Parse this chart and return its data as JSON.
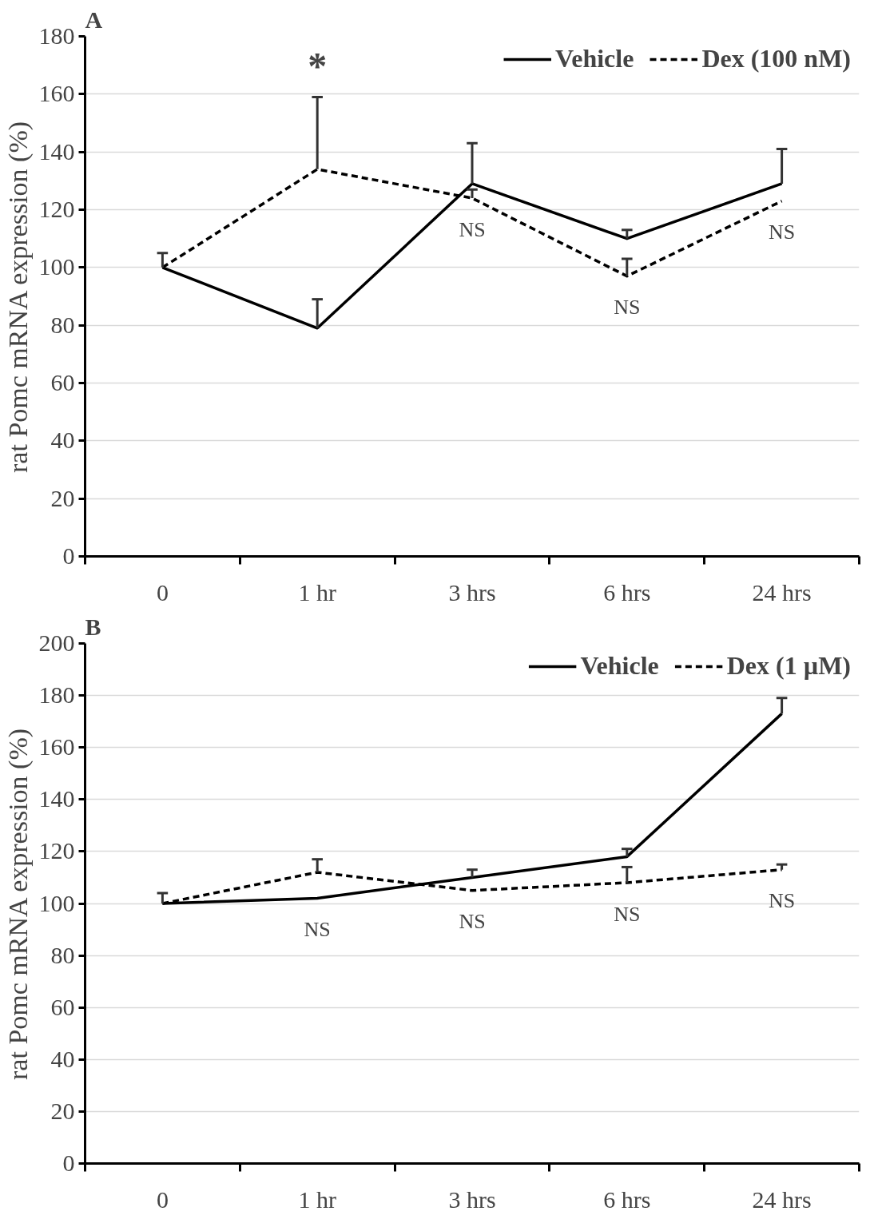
{
  "chart_data": [
    {
      "type": "line",
      "title": "A",
      "ylabel": "rat Pomc mRNA expression (%)",
      "categories": [
        "0",
        "1 hr",
        "3 hrs",
        "6 hrs",
        "24 hrs"
      ],
      "ylim": [
        0,
        180
      ],
      "yticks": [
        0,
        20,
        40,
        60,
        80,
        100,
        120,
        140,
        160,
        180
      ],
      "grid": "y",
      "legend": "top",
      "marker": "none",
      "series": [
        {
          "name": "Vehicle",
          "color": "#000000",
          "line_style": "solid",
          "values": [
            100,
            79,
            129,
            110,
            129
          ],
          "errors": [
            null,
            [
              79,
              89
            ],
            [
              129,
              143
            ],
            [
              110,
              113
            ],
            [
              129,
              141
            ]
          ]
        },
        {
          "name": "Dex (100 nM)",
          "color": "#000000",
          "line_style": "dashed",
          "values": [
            100,
            134,
            124,
            97,
            123
          ],
          "errors": [
            [
              100,
              105
            ],
            [
              134,
              159
            ],
            [
              124,
              127
            ],
            [
              97,
              103
            ],
            null
          ]
        }
      ],
      "annotations": [
        "*",
        "NS",
        "NS",
        "NS"
      ]
    },
    {
      "type": "line",
      "title": "B",
      "ylabel": "rat Pomc mRNA expression (%)",
      "categories": [
        "0",
        "1 hr",
        "3 hrs",
        "6 hrs",
        "24 hrs"
      ],
      "ylim": [
        0,
        200
      ],
      "yticks": [
        0,
        20,
        40,
        60,
        80,
        100,
        120,
        140,
        160,
        180,
        200
      ],
      "grid": "y",
      "legend": "top",
      "marker": "none",
      "series": [
        {
          "name": "Vehicle",
          "color": "#000000",
          "line_style": "solid",
          "values": [
            100,
            102,
            110,
            118,
            173
          ],
          "errors": [
            null,
            null,
            [
              110,
              113
            ],
            [
              118,
              121
            ],
            [
              173,
              179
            ]
          ]
        },
        {
          "name": "Dex (1 µM)",
          "color": "#000000",
          "line_style": "dashed",
          "values": [
            100,
            112,
            105,
            108,
            113
          ],
          "errors": [
            [
              100,
              104
            ],
            [
              112,
              117
            ],
            null,
            [
              108,
              114
            ],
            [
              113,
              115
            ]
          ]
        }
      ],
      "annotations": [
        "NS",
        "NS",
        "NS",
        "NS"
      ]
    }
  ]
}
